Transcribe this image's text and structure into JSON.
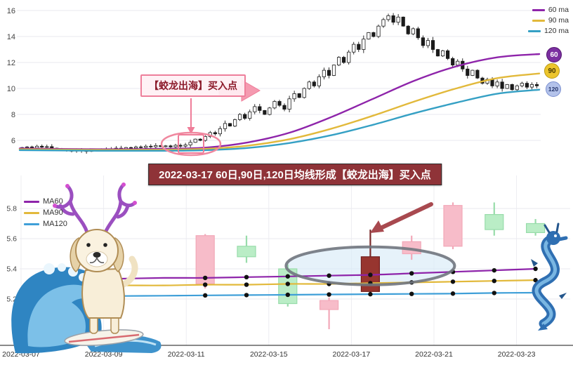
{
  "banner": {
    "text": "2022-03-17 60日,90日,120日均线形成【蛟龙出海】买入点",
    "bg": "#8f3338",
    "text_color": "#ffffff"
  },
  "top_chart": {
    "legend": [
      {
        "label": "60 ma",
        "color": "#8e24aa"
      },
      {
        "label": "90 ma",
        "color": "#e2b93b"
      },
      {
        "label": "120 ma",
        "color": "#35a0c4"
      }
    ],
    "badges": [
      {
        "label": "60",
        "bg": "#7b2fa0",
        "fg": "#ffffff"
      },
      {
        "label": "90",
        "bg": "#ecc52d",
        "fg": "#4a3a00"
      },
      {
        "label": "120",
        "bg": "#b3c2ea",
        "fg": "#25356b"
      }
    ],
    "annotation_label": "【蛟龙出海】买入点",
    "annotation_color": "#ee7f9b"
  },
  "bottom_chart": {
    "legend": [
      {
        "label": "MA60",
        "color": "#8e24aa"
      },
      {
        "label": "MA90",
        "color": "#e2b93b"
      },
      {
        "label": "MA120",
        "color": "#3f9fd8"
      }
    ]
  },
  "illustrations": {
    "left": "dog-with-dragon-antlers-surfing-wave",
    "right": "blue-dragon"
  },
  "chart_data": [
    {
      "type": "candlestick",
      "panel": "top",
      "title": "",
      "ylim": [
        4.85,
        16.7
      ],
      "y_ticks": [
        6,
        8,
        10,
        12,
        14,
        16
      ],
      "grid": "horizontal",
      "legend_position": "top-right",
      "closes": [
        5.45,
        5.5,
        5.42,
        5.55,
        5.48,
        5.52,
        5.4,
        5.35,
        5.3,
        5.22,
        5.18,
        5.25,
        5.2,
        5.15,
        5.22,
        5.3,
        5.25,
        5.35,
        5.3,
        5.4,
        5.35,
        5.45,
        5.4,
        5.5,
        5.45,
        5.55,
        5.5,
        5.6,
        5.52,
        5.58,
        5.5,
        5.62,
        5.55,
        5.65,
        5.85,
        6.1,
        6.0,
        6.3,
        6.6,
        6.5,
        6.9,
        7.3,
        7.1,
        7.6,
        8.0,
        7.7,
        8.2,
        8.6,
        8.3,
        8.0,
        8.5,
        9.0,
        8.7,
        8.4,
        9.2,
        9.6,
        9.3,
        10.0,
        10.5,
        10.2,
        10.9,
        11.4,
        11.0,
        11.8,
        12.4,
        12.0,
        12.8,
        13.4,
        13.0,
        13.8,
        14.3,
        14.0,
        14.8,
        15.3,
        15.6,
        15.1,
        15.5,
        14.8,
        14.2,
        14.6,
        13.9,
        13.3,
        13.7,
        13.0,
        12.5,
        12.9,
        12.3,
        11.8,
        12.1,
        11.5,
        11.0,
        11.4,
        10.8,
        10.4,
        10.7,
        10.2,
        10.5,
        10.0,
        10.3,
        9.9,
        10.2,
        10.4,
        10.1,
        10.3,
        10.2
      ],
      "series": [
        {
          "name": "60 ma",
          "color": "#8e24aa",
          "points": [
            [
              0,
              5.38
            ],
            [
              0.15,
              5.32
            ],
            [
              0.28,
              5.35
            ],
            [
              0.36,
              5.45
            ],
            [
              0.44,
              5.85
            ],
            [
              0.52,
              6.6
            ],
            [
              0.6,
              7.8
            ],
            [
              0.68,
              9.2
            ],
            [
              0.76,
              10.6
            ],
            [
              0.84,
              11.7
            ],
            [
              0.92,
              12.4
            ],
            [
              1,
              12.65
            ]
          ]
        },
        {
          "name": "90 ma",
          "color": "#e2b93b",
          "points": [
            [
              0,
              5.32
            ],
            [
              0.15,
              5.27
            ],
            [
              0.28,
              5.28
            ],
            [
              0.36,
              5.35
            ],
            [
              0.44,
              5.6
            ],
            [
              0.52,
              6.1
            ],
            [
              0.6,
              6.9
            ],
            [
              0.68,
              7.9
            ],
            [
              0.76,
              9.0
            ],
            [
              0.84,
              10.0
            ],
            [
              0.92,
              10.8
            ],
            [
              1,
              11.15
            ]
          ]
        },
        {
          "name": "120 ma",
          "color": "#35a0c4",
          "points": [
            [
              0,
              5.25
            ],
            [
              0.15,
              5.2
            ],
            [
              0.28,
              5.2
            ],
            [
              0.36,
              5.25
            ],
            [
              0.44,
              5.42
            ],
            [
              0.52,
              5.8
            ],
            [
              0.6,
              6.4
            ],
            [
              0.68,
              7.2
            ],
            [
              0.76,
              8.1
            ],
            [
              0.84,
              8.9
            ],
            [
              0.92,
              9.6
            ],
            [
              1,
              9.9
            ]
          ]
        }
      ],
      "buy_point_value": 5.85
    },
    {
      "type": "candlestick",
      "panel": "bottom",
      "y_ticks": [
        5.2,
        5.4,
        5.6,
        5.8
      ],
      "ylim": [
        4.9,
        6.0
      ],
      "grid": "both",
      "x_tick_labels": [
        {
          "label": "2022-03-07",
          "day_index": 0
        },
        {
          "label": "2022-03-09",
          "day_index": 2
        },
        {
          "label": "2022-03-11",
          "day_index": 4
        },
        {
          "label": "2022-03-15",
          "day_index": 6
        },
        {
          "label": "2022-03-17",
          "day_index": 8
        },
        {
          "label": "2022-03-21",
          "day_index": 10
        },
        {
          "label": "2022-03-23",
          "day_index": 12
        }
      ],
      "candles": [
        {
          "date": "2022-03-11",
          "day_index": 4,
          "open": 5.3,
          "high": 5.63,
          "low": 5.27,
          "close": 5.62,
          "type": "up",
          "highlight": false
        },
        {
          "date": "2022-03-14",
          "day_index": 5,
          "open": 5.55,
          "high": 5.62,
          "low": 5.44,
          "close": 5.48,
          "type": "down",
          "highlight": false
        },
        {
          "date": "2022-03-15",
          "day_index": 6,
          "open": 5.4,
          "high": 5.43,
          "low": 5.15,
          "close": 5.17,
          "type": "down",
          "highlight": false
        },
        {
          "date": "2022-03-16",
          "day_index": 7,
          "open": 5.13,
          "high": 5.21,
          "low": 5.0,
          "close": 5.19,
          "type": "up",
          "highlight": false
        },
        {
          "date": "2022-03-17",
          "day_index": 8,
          "open": 5.25,
          "high": 5.66,
          "low": 5.22,
          "close": 5.48,
          "type": "up",
          "highlight": true
        },
        {
          "date": "2022-03-18",
          "day_index": 9,
          "open": 5.5,
          "high": 5.62,
          "low": 5.46,
          "close": 5.58,
          "type": "up",
          "highlight": false
        },
        {
          "date": "2022-03-21",
          "day_index": 10,
          "open": 5.55,
          "high": 5.84,
          "low": 5.53,
          "close": 5.82,
          "type": "up",
          "highlight": false
        },
        {
          "date": "2022-03-22",
          "day_index": 11,
          "open": 5.76,
          "high": 5.84,
          "low": 5.62,
          "close": 5.66,
          "type": "down",
          "highlight": false
        },
        {
          "date": "2022-03-23",
          "day_index": 12,
          "open": 5.7,
          "high": 5.73,
          "low": 5.62,
          "close": 5.64,
          "type": "down",
          "highlight": false
        }
      ],
      "series": [
        {
          "name": "MA60",
          "color": "#8e24aa",
          "values": [
            5.33,
            5.33,
            5.335,
            5.34,
            5.34,
            5.345,
            5.35,
            5.355,
            5.36,
            5.37,
            5.38,
            5.39,
            5.4
          ]
        },
        {
          "name": "MA90",
          "color": "#e2b93b",
          "values": [
            5.285,
            5.285,
            5.29,
            5.29,
            5.295,
            5.295,
            5.3,
            5.3,
            5.305,
            5.31,
            5.315,
            5.32,
            5.325
          ]
        },
        {
          "name": "MA120",
          "color": "#3f9fd8",
          "values": [
            5.22,
            5.22,
            5.22,
            5.222,
            5.224,
            5.226,
            5.228,
            5.23,
            5.232,
            5.234,
            5.236,
            5.24,
            5.242
          ]
        }
      ],
      "highlight": {
        "date": "2022-03-17",
        "marker": "gray-ellipse"
      }
    }
  ]
}
